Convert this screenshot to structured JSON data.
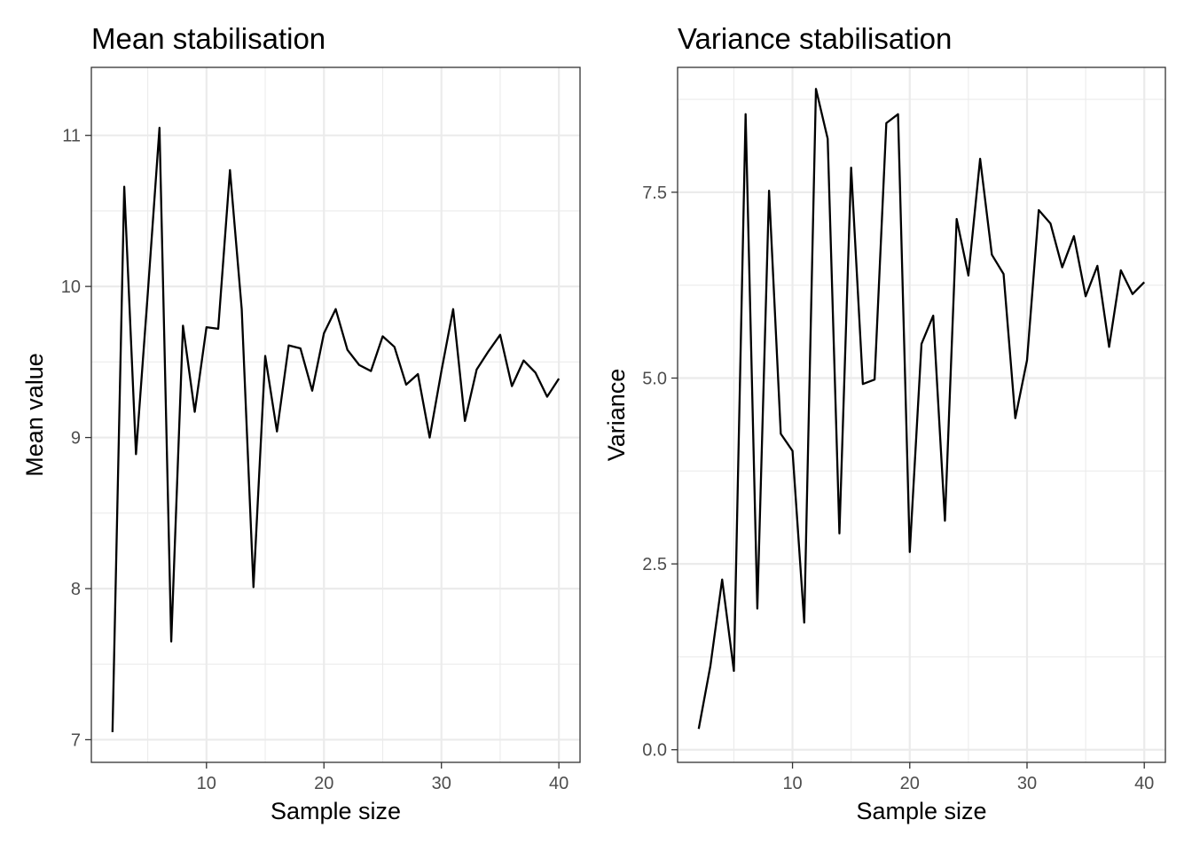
{
  "chart_data": [
    {
      "type": "line",
      "title": "Mean stabilisation",
      "xlabel": "Sample size",
      "ylabel": "Mean value",
      "xlim": [
        0.2,
        41.8
      ],
      "ylim": [
        6.85,
        11.45
      ],
      "x_ticks": [
        10,
        20,
        30,
        40
      ],
      "x_tick_labels": [
        "10",
        "20",
        "30",
        "40"
      ],
      "y_ticks": [
        7,
        8,
        9,
        10,
        11
      ],
      "y_tick_labels": [
        "7",
        "8",
        "9",
        "10",
        "11"
      ],
      "grid": true,
      "series": [
        {
          "x": [
            2,
            3,
            4,
            5,
            6,
            7,
            8,
            9,
            10,
            11,
            12,
            13,
            14,
            15,
            16,
            17,
            18,
            19,
            20,
            21,
            22,
            23,
            24,
            25,
            26,
            27,
            28,
            29,
            30,
            31,
            32,
            33,
            34,
            35,
            36,
            37,
            38,
            39,
            40
          ],
          "y": [
            7.05,
            10.66,
            8.89,
            9.95,
            11.05,
            7.65,
            9.74,
            9.17,
            9.73,
            9.72,
            10.77,
            9.85,
            8.01,
            9.54,
            9.04,
            9.61,
            9.59,
            9.31,
            9.69,
            9.85,
            9.58,
            9.48,
            9.44,
            9.67,
            9.6,
            9.35,
            9.42,
            9.0,
            9.44,
            9.85,
            9.11,
            9.45,
            9.57,
            9.68,
            9.34,
            9.51,
            9.43,
            9.27,
            9.39
          ],
          "color": "#000000"
        }
      ]
    },
    {
      "type": "line",
      "title": "Variance stabilisation",
      "xlabel": "Sample size",
      "ylabel": "Variance",
      "xlim": [
        0.2,
        41.8
      ],
      "ylim": [
        -0.17,
        9.18
      ],
      "x_ticks": [
        10,
        20,
        30,
        40
      ],
      "x_tick_labels": [
        "10",
        "20",
        "30",
        "40"
      ],
      "y_ticks": [
        0,
        2.5,
        5,
        7.5
      ],
      "y_tick_labels": [
        "0.0",
        "2.5",
        "5.0",
        "7.5"
      ],
      "grid": true,
      "series": [
        {
          "x": [
            2,
            3,
            4,
            5,
            6,
            7,
            8,
            9,
            10,
            11,
            12,
            13,
            14,
            15,
            16,
            17,
            18,
            19,
            20,
            21,
            22,
            23,
            24,
            25,
            26,
            27,
            28,
            29,
            30,
            31,
            32,
            33,
            34,
            35,
            36,
            37,
            38,
            39,
            40
          ],
          "y": [
            0.28,
            1.13,
            2.29,
            1.06,
            8.55,
            1.9,
            7.52,
            4.25,
            4.02,
            1.71,
            8.89,
            8.22,
            2.91,
            7.83,
            4.92,
            4.98,
            8.43,
            8.55,
            2.66,
            5.46,
            5.84,
            3.08,
            7.14,
            6.38,
            7.95,
            6.66,
            6.4,
            4.46,
            5.24,
            7.26,
            7.08,
            6.49,
            6.91,
            6.1,
            6.51,
            5.42,
            6.45,
            6.13,
            6.29
          ],
          "color": "#000000"
        }
      ]
    }
  ]
}
